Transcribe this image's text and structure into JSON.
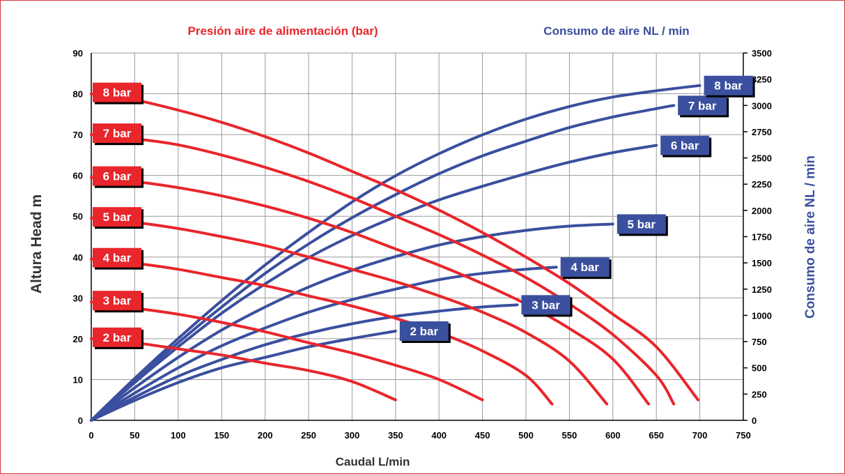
{
  "colors": {
    "pressure": "#e8262b",
    "air": "#3a4f9e",
    "grid": "#9a9a9a",
    "frame": "#d23a3a"
  },
  "chart_data": {
    "type": "line",
    "title_left": "Presión aire de alimentación (bar)",
    "title_right": "Consumo de aire NL / min",
    "xlabel": "Caudal L/min",
    "ylabel_left": "Altura Head m",
    "ylabel_right": "Consumo de aire NL / min",
    "xlim": [
      0,
      750
    ],
    "ylim_left": [
      0,
      90
    ],
    "ylim_right": [
      0,
      3500
    ],
    "x_ticks": [
      0,
      50,
      100,
      150,
      200,
      250,
      300,
      350,
      400,
      450,
      500,
      550,
      600,
      650,
      700,
      750
    ],
    "y_left_ticks": [
      0,
      10,
      20,
      30,
      40,
      50,
      60,
      70,
      80,
      90
    ],
    "y_right_ticks": [
      0,
      250,
      500,
      750,
      1000,
      1250,
      1500,
      1750,
      2000,
      2250,
      2500,
      2750,
      3000,
      3250,
      3500
    ],
    "grid": true,
    "pressure_series": [
      {
        "name": "2 bar",
        "points": [
          [
            0,
            20
          ],
          [
            50,
            19
          ],
          [
            100,
            17.5
          ],
          [
            150,
            16
          ],
          [
            200,
            14
          ],
          [
            250,
            12.2
          ],
          [
            300,
            9.5
          ],
          [
            350,
            5
          ]
        ]
      },
      {
        "name": "3 bar",
        "points": [
          [
            0,
            29
          ],
          [
            50,
            27.5
          ],
          [
            100,
            26
          ],
          [
            150,
            24
          ],
          [
            200,
            21.7
          ],
          [
            250,
            19
          ],
          [
            300,
            16.5
          ],
          [
            350,
            13.5
          ],
          [
            400,
            10
          ],
          [
            450,
            5
          ]
        ]
      },
      {
        "name": "4 bar",
        "points": [
          [
            0,
            39.5
          ],
          [
            50,
            38.5
          ],
          [
            100,
            37
          ],
          [
            150,
            35
          ],
          [
            200,
            33
          ],
          [
            250,
            30.5
          ],
          [
            300,
            28
          ],
          [
            350,
            25
          ],
          [
            400,
            21.5
          ],
          [
            450,
            17
          ],
          [
            500,
            11
          ],
          [
            530,
            4
          ]
        ]
      },
      {
        "name": "5 bar",
        "points": [
          [
            0,
            49.5
          ],
          [
            50,
            48.5
          ],
          [
            100,
            47
          ],
          [
            150,
            45
          ],
          [
            200,
            42.8
          ],
          [
            250,
            40
          ],
          [
            300,
            37
          ],
          [
            350,
            34
          ],
          [
            400,
            30.5
          ],
          [
            450,
            26.5
          ],
          [
            500,
            21.5
          ],
          [
            550,
            14.5
          ],
          [
            593,
            4
          ]
        ]
      },
      {
        "name": "6 bar",
        "points": [
          [
            0,
            59.5
          ],
          [
            50,
            58.5
          ],
          [
            100,
            57
          ],
          [
            150,
            55
          ],
          [
            200,
            52.5
          ],
          [
            250,
            49.5
          ],
          [
            300,
            46
          ],
          [
            350,
            42
          ],
          [
            400,
            38
          ],
          [
            450,
            33.5
          ],
          [
            500,
            28.5
          ],
          [
            550,
            22.5
          ],
          [
            600,
            15
          ],
          [
            641,
            4
          ]
        ]
      },
      {
        "name": "7 bar",
        "points": [
          [
            0,
            70
          ],
          [
            50,
            69
          ],
          [
            100,
            67.5
          ],
          [
            150,
            65
          ],
          [
            200,
            62
          ],
          [
            250,
            58.5
          ],
          [
            300,
            54.5
          ],
          [
            350,
            50
          ],
          [
            400,
            45.5
          ],
          [
            450,
            40.5
          ],
          [
            500,
            35
          ],
          [
            550,
            28.5
          ],
          [
            600,
            21
          ],
          [
            650,
            11
          ],
          [
            670,
            4
          ]
        ]
      },
      {
        "name": "8 bar",
        "points": [
          [
            0,
            80
          ],
          [
            50,
            78.5
          ],
          [
            100,
            76
          ],
          [
            150,
            73
          ],
          [
            200,
            69.5
          ],
          [
            250,
            65.5
          ],
          [
            300,
            61
          ],
          [
            350,
            56.5
          ],
          [
            400,
            51.5
          ],
          [
            450,
            46
          ],
          [
            500,
            40
          ],
          [
            550,
            33.5
          ],
          [
            600,
            26
          ],
          [
            650,
            18
          ],
          [
            698,
            5
          ]
        ]
      }
    ],
    "air_series": [
      {
        "name": "2 bar",
        "points": [
          [
            0,
            0
          ],
          [
            50,
            190
          ],
          [
            100,
            360
          ],
          [
            150,
            500
          ],
          [
            200,
            600
          ],
          [
            250,
            700
          ],
          [
            300,
            780
          ],
          [
            350,
            850
          ]
        ]
      },
      {
        "name": "3 bar",
        "points": [
          [
            0,
            0
          ],
          [
            50,
            220
          ],
          [
            100,
            420
          ],
          [
            150,
            580
          ],
          [
            200,
            720
          ],
          [
            250,
            830
          ],
          [
            300,
            920
          ],
          [
            350,
            990
          ],
          [
            400,
            1040
          ],
          [
            450,
            1080
          ],
          [
            490,
            1100
          ]
        ]
      },
      {
        "name": "4 bar",
        "points": [
          [
            0,
            0
          ],
          [
            50,
            260
          ],
          [
            100,
            500
          ],
          [
            150,
            710
          ],
          [
            200,
            880
          ],
          [
            250,
            1030
          ],
          [
            300,
            1150
          ],
          [
            350,
            1250
          ],
          [
            400,
            1340
          ],
          [
            450,
            1400
          ],
          [
            500,
            1440
          ],
          [
            535,
            1460
          ]
        ]
      },
      {
        "name": "5 bar",
        "points": [
          [
            0,
            0
          ],
          [
            50,
            310
          ],
          [
            100,
            600
          ],
          [
            150,
            860
          ],
          [
            200,
            1080
          ],
          [
            250,
            1270
          ],
          [
            300,
            1430
          ],
          [
            350,
            1560
          ],
          [
            400,
            1670
          ],
          [
            450,
            1750
          ],
          [
            500,
            1810
          ],
          [
            550,
            1850
          ],
          [
            600,
            1870
          ]
        ]
      },
      {
        "name": "6 bar",
        "points": [
          [
            0,
            0
          ],
          [
            50,
            360
          ],
          [
            100,
            700
          ],
          [
            150,
            1020
          ],
          [
            200,
            1300
          ],
          [
            250,
            1550
          ],
          [
            300,
            1760
          ],
          [
            350,
            1940
          ],
          [
            400,
            2100
          ],
          [
            450,
            2230
          ],
          [
            500,
            2350
          ],
          [
            550,
            2460
          ],
          [
            600,
            2550
          ],
          [
            650,
            2620
          ]
        ]
      },
      {
        "name": "7 bar",
        "points": [
          [
            0,
            0
          ],
          [
            50,
            380
          ],
          [
            100,
            740
          ],
          [
            150,
            1080
          ],
          [
            200,
            1400
          ],
          [
            250,
            1680
          ],
          [
            300,
            1930
          ],
          [
            350,
            2150
          ],
          [
            400,
            2350
          ],
          [
            450,
            2520
          ],
          [
            500,
            2660
          ],
          [
            550,
            2790
          ],
          [
            600,
            2890
          ],
          [
            650,
            2970
          ],
          [
            670,
            3000
          ]
        ]
      },
      {
        "name": "8 bar",
        "points": [
          [
            0,
            0
          ],
          [
            50,
            400
          ],
          [
            100,
            780
          ],
          [
            150,
            1140
          ],
          [
            200,
            1480
          ],
          [
            250,
            1790
          ],
          [
            300,
            2080
          ],
          [
            350,
            2330
          ],
          [
            400,
            2540
          ],
          [
            450,
            2720
          ],
          [
            500,
            2870
          ],
          [
            550,
            2990
          ],
          [
            600,
            3080
          ],
          [
            650,
            3140
          ],
          [
            700,
            3190
          ]
        ]
      }
    ]
  }
}
